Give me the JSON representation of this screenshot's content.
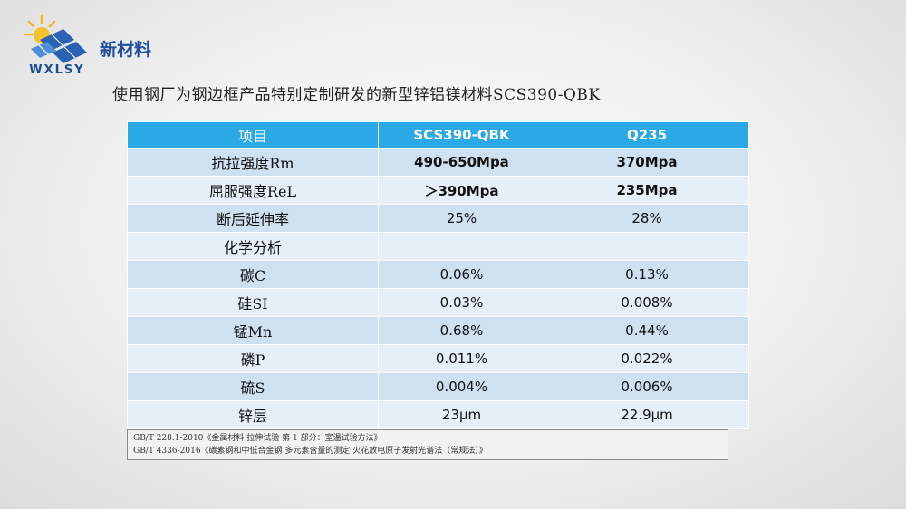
{
  "logo": {
    "text": "WXLSY"
  },
  "header": {
    "title": "新材料",
    "subtitle": "使用钢厂为钢边框产品特别定制研发的新型锌铝镁材料SCS390-QBK"
  },
  "table": {
    "headers": [
      "项目",
      "SCS390-QBK",
      "Q235"
    ],
    "rows": [
      {
        "label": "抗拉强度Rm",
        "a": "490-650Mpa",
        "b": "370Mpa",
        "bold": true
      },
      {
        "label": "屈服强度ReL",
        "a": "＞390Mpa",
        "b": "235Mpa",
        "bold": true
      },
      {
        "label": "断后延伸率",
        "a": "25%",
        "b": "28%"
      },
      {
        "label": "化学分析",
        "a": "",
        "b": ""
      },
      {
        "label": "碳C",
        "a": "0.06%",
        "b": "0.13%"
      },
      {
        "label": "硅SI",
        "a": "0.03%",
        "b": "0.008%"
      },
      {
        "label": "锰Mn",
        "a": "0.68%",
        "b": "0.44%"
      },
      {
        "label": "磷P",
        "a": "0.011%",
        "b": "0.022%"
      },
      {
        "label": "硫S",
        "a": "0.004%",
        "b": "0.006%"
      },
      {
        "label": "锌层",
        "a": "23μm",
        "b": "22.9μm"
      }
    ]
  },
  "footnote": {
    "lines": [
      "GB/T 228.1-2010《金属材料 拉伸试验 第 1 部分：室温试验方法》",
      "GB/T 4336-2016《碳素钢和中低合金钢 多元素含量的测定 火花放电原子发射光谱法（常规法）》"
    ]
  },
  "colors": {
    "header_blue": "#2ba8e6",
    "row_dark": "#cfe1f1",
    "row_light": "#e6eff7",
    "title": "#1f4ea1"
  }
}
